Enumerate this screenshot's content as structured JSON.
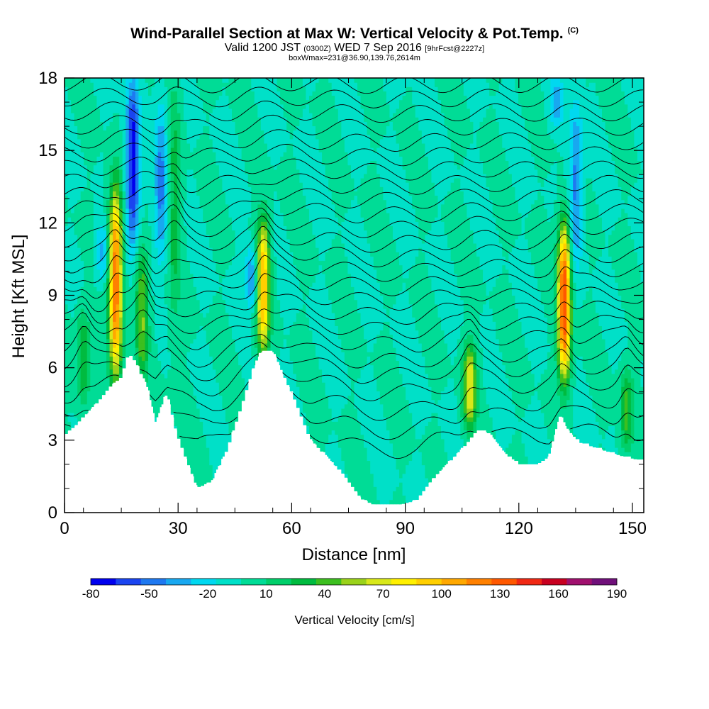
{
  "header": {
    "title": "Wind-Parallel Section at Max W: Vertical Velocity & Pot.Temp.",
    "copyright_mark": "(C)",
    "subtitle_valid": "Valid 1200 JST",
    "subtitle_utc": "(0300Z)",
    "subtitle_date": "WED 7 Sep 2016",
    "subtitle_fcst": "[9hrFcst@2227z]",
    "subtitle_box": "boxWmax=231@36.90,139.76,2614m"
  },
  "chart_data": {
    "type": "heatmap",
    "xlabel": "Distance [nm]",
    "ylabel": "Height [Kft MSL]",
    "xlim": [
      0,
      153
    ],
    "ylim": [
      0,
      18
    ],
    "x_ticks": [
      "0",
      "30",
      "60",
      "90",
      "120",
      "150"
    ],
    "y_ticks": [
      "0",
      "3",
      "6",
      "9",
      "12",
      "15",
      "18"
    ],
    "background_w_cms": 10,
    "colorbar": {
      "label": "Vertical Velocity [cm/s]",
      "tick_labels": [
        "-80",
        "-50",
        "-20",
        "10",
        "40",
        "70",
        "100",
        "130",
        "160",
        "190"
      ],
      "min": -80,
      "max": 190,
      "step": 15,
      "colors": [
        "#0000ee",
        "#1a44f0",
        "#1e78f0",
        "#18a8f0",
        "#00d8f0",
        "#00e0c8",
        "#00dc96",
        "#00cf6a",
        "#00bb3f",
        "#3cbf1f",
        "#9ad21a",
        "#d8e81a",
        "#fff000",
        "#ffcf00",
        "#ffa800",
        "#ff8000",
        "#ff5800",
        "#f02814",
        "#c80020",
        "#a0106e",
        "#70107a"
      ]
    },
    "terrain_kft": [
      {
        "x": 0,
        "h": 3.2
      },
      {
        "x": 3,
        "h": 3.6
      },
      {
        "x": 6,
        "h": 4.1
      },
      {
        "x": 9,
        "h": 4.6
      },
      {
        "x": 12,
        "h": 5.2
      },
      {
        "x": 15,
        "h": 5.6
      },
      {
        "x": 17,
        "h": 6.6
      },
      {
        "x": 19,
        "h": 6.2
      },
      {
        "x": 22,
        "h": 5.1
      },
      {
        "x": 24,
        "h": 3.6
      },
      {
        "x": 27,
        "h": 5.0
      },
      {
        "x": 29,
        "h": 3.6
      },
      {
        "x": 32,
        "h": 2.2
      },
      {
        "x": 35,
        "h": 1.0
      },
      {
        "x": 39,
        "h": 1.3
      },
      {
        "x": 43,
        "h": 2.6
      },
      {
        "x": 47,
        "h": 4.5
      },
      {
        "x": 50,
        "h": 6.0
      },
      {
        "x": 52,
        "h": 6.7
      },
      {
        "x": 55,
        "h": 6.7
      },
      {
        "x": 58,
        "h": 5.6
      },
      {
        "x": 61,
        "h": 4.6
      },
      {
        "x": 65,
        "h": 3.0
      },
      {
        "x": 70,
        "h": 2.2
      },
      {
        "x": 74,
        "h": 1.5
      },
      {
        "x": 78,
        "h": 0.6
      },
      {
        "x": 82,
        "h": 0.3
      },
      {
        "x": 88,
        "h": 0.3
      },
      {
        "x": 93,
        "h": 0.5
      },
      {
        "x": 98,
        "h": 1.5
      },
      {
        "x": 103,
        "h": 2.3
      },
      {
        "x": 106,
        "h": 2.8
      },
      {
        "x": 109,
        "h": 3.4
      },
      {
        "x": 112,
        "h": 3.3
      },
      {
        "x": 116,
        "h": 2.5
      },
      {
        "x": 120,
        "h": 2.0
      },
      {
        "x": 125,
        "h": 2.0
      },
      {
        "x": 128,
        "h": 2.3
      },
      {
        "x": 131,
        "h": 4.0
      },
      {
        "x": 133,
        "h": 3.4
      },
      {
        "x": 136,
        "h": 2.9
      },
      {
        "x": 140,
        "h": 2.7
      },
      {
        "x": 144,
        "h": 2.5
      },
      {
        "x": 148,
        "h": 2.3
      },
      {
        "x": 151,
        "h": 2.2
      },
      {
        "x": 153,
        "h": 2.2
      }
    ],
    "updraft_cores": [
      {
        "x": 5,
        "z_bottom": 4.5,
        "z_top": 8.5,
        "w_max": 55
      },
      {
        "x": 13.5,
        "z_bottom": 5.5,
        "z_top": 13.5,
        "w_max": 160
      },
      {
        "x": 20.5,
        "z_bottom": 5.5,
        "z_top": 11.0,
        "w_max": 70
      },
      {
        "x": 29,
        "z_bottom": 8.0,
        "z_top": 18.0,
        "w_max": 45
      },
      {
        "x": 52.5,
        "z_bottom": 6.5,
        "z_top": 12.2,
        "w_max": 130
      },
      {
        "x": 107,
        "z_bottom": 3.5,
        "z_top": 7.0,
        "w_max": 100
      },
      {
        "x": 132,
        "z_bottom": 5.5,
        "z_top": 12.0,
        "w_max": 175
      },
      {
        "x": 148.5,
        "z_bottom": 2.5,
        "z_top": 6.0,
        "w_max": 60
      }
    ],
    "downdraft_cores": [
      {
        "x": 18,
        "z_bottom": 11.0,
        "z_top": 18.0,
        "w_min": -75
      },
      {
        "x": 25.5,
        "z_bottom": 10.5,
        "z_top": 17.0,
        "w_min": -40
      },
      {
        "x": 10,
        "z_bottom": 9.5,
        "z_top": 12.0,
        "w_min": -25
      },
      {
        "x": 49.5,
        "z_bottom": 8.5,
        "z_top": 11.0,
        "w_min": -35
      },
      {
        "x": 135,
        "z_bottom": 10.0,
        "z_top": 17.0,
        "w_min": -40
      },
      {
        "x": 130,
        "z_bottom": 16.0,
        "z_top": 18.0,
        "w_min": -30
      }
    ],
    "theta_levels_kft": [
      2.5,
      3.3,
      4.1,
      4.9,
      5.6,
      6.2,
      6.9,
      7.5,
      8.1,
      8.7,
      9.3,
      9.9,
      10.5,
      11.1,
      11.7,
      12.3,
      12.9,
      13.5,
      14.1,
      14.7,
      15.3,
      15.9,
      16.5,
      17.1,
      17.7
    ]
  }
}
